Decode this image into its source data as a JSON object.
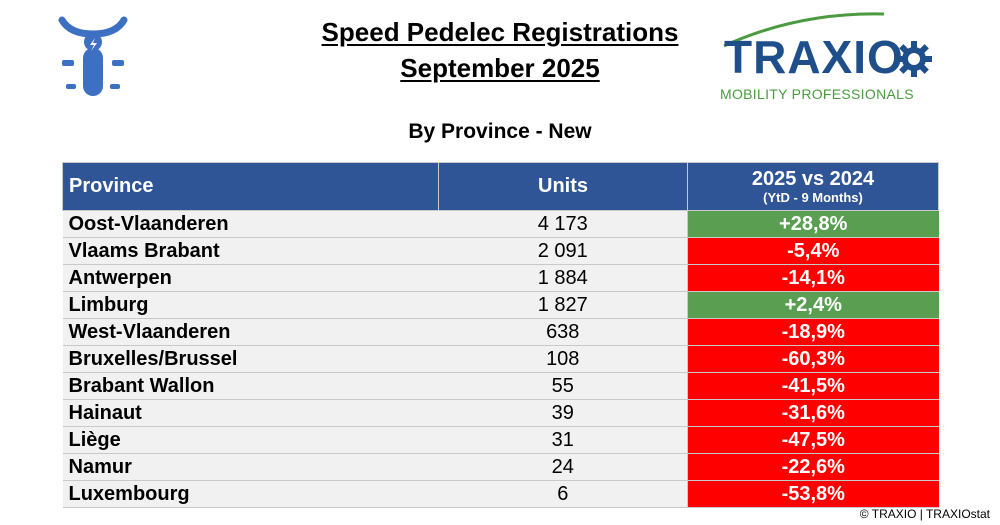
{
  "header": {
    "title_line1": "Speed Pedelec Registrations",
    "title_line2": "September 2025",
    "subtitle": "By Province - New",
    "icon": "speed-pedelec-icon"
  },
  "logo": {
    "name": "TRAXIO",
    "tagline": "MOBILITY PROFESSIONALS"
  },
  "colors": {
    "header_bg": "#2f5597",
    "positive": "#5a9e52",
    "negative": "#ff0000",
    "logo_blue": "#1e4f8a",
    "logo_green": "#4a9b3f"
  },
  "table": {
    "columns": {
      "province": "Province",
      "units": "Units",
      "change": "2025 vs 2024",
      "change_sub": "(YtD - 9 Months)"
    },
    "rows": [
      {
        "province": "Oost-Vlaanderen",
        "units": "4 173",
        "change": "+28,8%",
        "trend": "pos"
      },
      {
        "province": "Vlaams Brabant",
        "units": "2 091",
        "change": "-5,4%",
        "trend": "neg"
      },
      {
        "province": "Antwerpen",
        "units": "1 884",
        "change": "-14,1%",
        "trend": "neg"
      },
      {
        "province": "Limburg",
        "units": "1 827",
        "change": "+2,4%",
        "trend": "pos"
      },
      {
        "province": "West-Vlaanderen",
        "units": "638",
        "change": "-18,9%",
        "trend": "neg"
      },
      {
        "province": "Bruxelles/Brussel",
        "units": "108",
        "change": "-60,3%",
        "trend": "neg"
      },
      {
        "province": "Brabant Wallon",
        "units": "55",
        "change": "-41,5%",
        "trend": "neg"
      },
      {
        "province": "Hainaut",
        "units": "39",
        "change": "-31,6%",
        "trend": "neg"
      },
      {
        "province": "Liège",
        "units": "31",
        "change": "-47,5%",
        "trend": "neg"
      },
      {
        "province": "Namur",
        "units": "24",
        "change": "-22,6%",
        "trend": "neg"
      },
      {
        "province": "Luxembourg",
        "units": "6",
        "change": "-53,8%",
        "trend": "neg"
      }
    ]
  },
  "footer": {
    "copyright": "© TRAXIO | TRAXIOstat"
  }
}
